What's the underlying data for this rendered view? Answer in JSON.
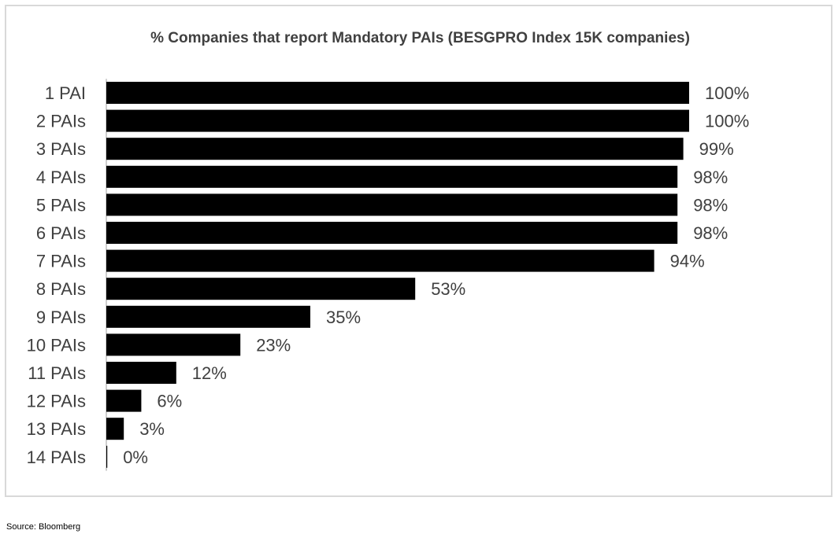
{
  "chart_data": {
    "type": "bar",
    "orientation": "horizontal",
    "title": "% Companies that report Mandatory PAIs (BESGPRO Index 15K companies)",
    "xlabel": "",
    "ylabel": "",
    "xlim": [
      0,
      100
    ],
    "grid": false,
    "legend": "none",
    "categories": [
      "1 PAI",
      "2 PAIs",
      "3 PAIs",
      "4 PAIs",
      "5 PAIs",
      "6 PAIs",
      "7 PAIs",
      "8 PAIs",
      "9 PAIs",
      "10 PAIs",
      "11 PAIs",
      "12 PAIs",
      "13 PAIs",
      "14 PAIs"
    ],
    "values": [
      100,
      100,
      99,
      98,
      98,
      98,
      94,
      53,
      35,
      23,
      12,
      6,
      3,
      0
    ],
    "data_labels": [
      "100%",
      "100%",
      "99%",
      "98%",
      "98%",
      "98%",
      "94%",
      "53%",
      "35%",
      "23%",
      "12%",
      "6%",
      "3%",
      "0%"
    ],
    "bar_color": "#000000",
    "axis_color": "#bfbfbf"
  },
  "source": "Source: Bloomberg"
}
